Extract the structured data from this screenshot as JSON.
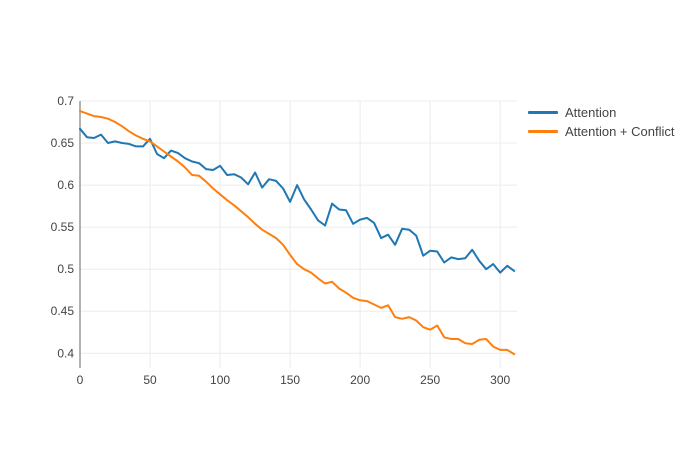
{
  "figure": {
    "background": "#ffffff"
  },
  "legend": {
    "items": [
      {
        "label": "Attention",
        "color": "#1f77b4"
      },
      {
        "label": "Attention + Conflict",
        "color": "#ff7f0e"
      }
    ]
  },
  "chart_data": {
    "type": "line",
    "title": "",
    "xlabel": "",
    "ylabel": "",
    "grid": true,
    "legend_position": "right",
    "colors": {
      "grid_color": "#ececec",
      "axis_line_color": "#999999",
      "tick_label_color": "#444444",
      "series_attention": "#1f77b4",
      "series_attention_conflict": "#ff7f0e"
    },
    "xlim": [
      0,
      312
    ],
    "ylim": [
      0.3825,
      0.7
    ],
    "xticks": [
      0,
      50,
      100,
      150,
      200,
      250,
      300
    ],
    "xtick_labels": [
      "0",
      "50",
      "100",
      "150",
      "200",
      "250",
      "300"
    ],
    "yticks": [
      0.4,
      0.45,
      0.5,
      0.55,
      0.6,
      0.65,
      0.7
    ],
    "ytick_labels": [
      "0.4",
      "0.45",
      "0.5",
      "0.55",
      "0.6",
      "0.65",
      "0.7"
    ],
    "x": [
      0,
      5,
      10,
      15,
      20,
      25,
      30,
      35,
      40,
      45,
      50,
      55,
      60,
      65,
      70,
      75,
      80,
      85,
      90,
      95,
      100,
      105,
      110,
      115,
      120,
      125,
      130,
      135,
      140,
      145,
      150,
      155,
      160,
      165,
      170,
      175,
      180,
      185,
      190,
      195,
      200,
      205,
      210,
      215,
      220,
      225,
      230,
      235,
      240,
      245,
      250,
      255,
      260,
      265,
      270,
      275,
      280,
      285,
      290,
      295,
      300,
      305,
      310
    ],
    "series": [
      {
        "name": "Attention",
        "color": "#1f77b4",
        "values": [
          0.667,
          0.657,
          0.656,
          0.66,
          0.65,
          0.652,
          0.65,
          0.649,
          0.646,
          0.646,
          0.655,
          0.637,
          0.632,
          0.641,
          0.638,
          0.632,
          0.628,
          0.626,
          0.619,
          0.618,
          0.623,
          0.612,
          0.613,
          0.609,
          0.601,
          0.615,
          0.597,
          0.607,
          0.605,
          0.596,
          0.58,
          0.6,
          0.583,
          0.571,
          0.558,
          0.552,
          0.578,
          0.571,
          0.57,
          0.554,
          0.559,
          0.561,
          0.555,
          0.537,
          0.541,
          0.529,
          0.548,
          0.547,
          0.54,
          0.516,
          0.522,
          0.521,
          0.508,
          0.514,
          0.512,
          0.513,
          0.523,
          0.51,
          0.5,
          0.506,
          0.496,
          0.504,
          0.498
        ]
      },
      {
        "name": "Attention + Conflict",
        "color": "#ff7f0e",
        "values": [
          0.688,
          0.685,
          0.682,
          0.681,
          0.679,
          0.675,
          0.67,
          0.664,
          0.659,
          0.655,
          0.652,
          0.646,
          0.64,
          0.634,
          0.628,
          0.621,
          0.612,
          0.611,
          0.604,
          0.596,
          0.589,
          0.582,
          0.576,
          0.569,
          0.562,
          0.554,
          0.547,
          0.542,
          0.537,
          0.529,
          0.517,
          0.506,
          0.5,
          0.496,
          0.489,
          0.483,
          0.485,
          0.477,
          0.472,
          0.466,
          0.463,
          0.462,
          0.458,
          0.454,
          0.457,
          0.443,
          0.441,
          0.443,
          0.439,
          0.431,
          0.428,
          0.433,
          0.419,
          0.417,
          0.417,
          0.412,
          0.411,
          0.416,
          0.417,
          0.408,
          0.404,
          0.404,
          0.399
        ]
      }
    ]
  }
}
